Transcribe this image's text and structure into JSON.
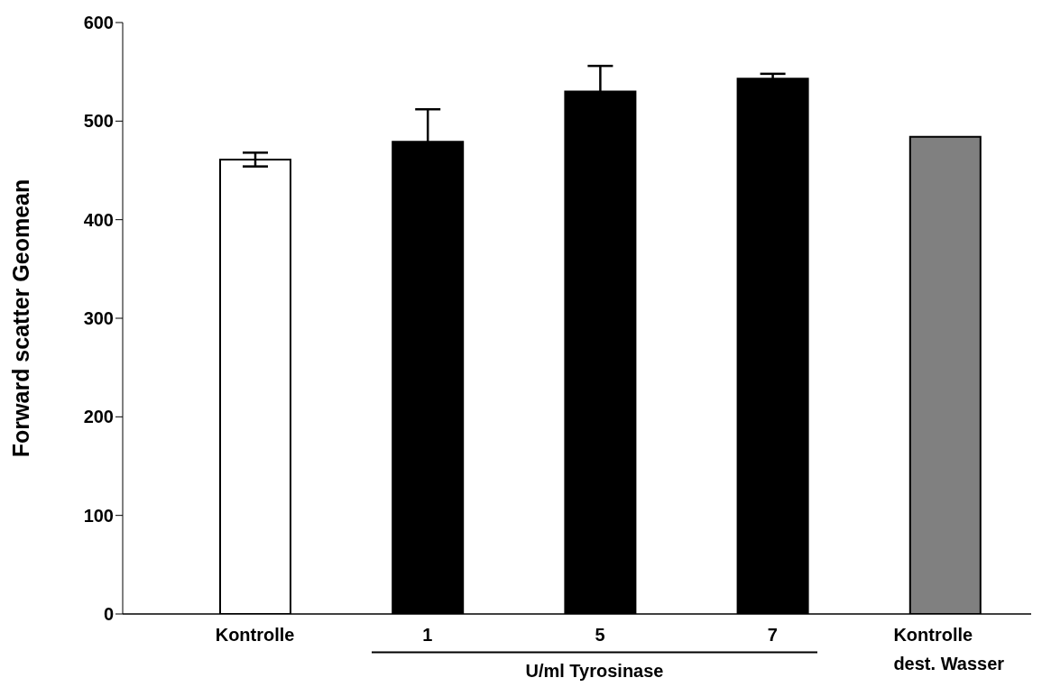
{
  "chart_data": {
    "type": "bar",
    "ylabel": "Forward scatter Geomean",
    "categories": [
      "Kontrolle",
      "1",
      "5",
      "7",
      "Kontrolle\ndest. Wasser"
    ],
    "values": [
      461,
      479,
      530,
      543,
      484
    ],
    "errors": [
      7,
      33,
      26,
      5,
      null
    ],
    "colors": [
      "#ffffff",
      "#000000",
      "#000000",
      "#000000",
      "#808080"
    ],
    "ylim": [
      0,
      600
    ],
    "yticks": [
      0,
      100,
      200,
      300,
      400,
      500,
      600
    ],
    "grid": false,
    "annotations": [
      "U/ml Tyrosinase"
    ]
  }
}
